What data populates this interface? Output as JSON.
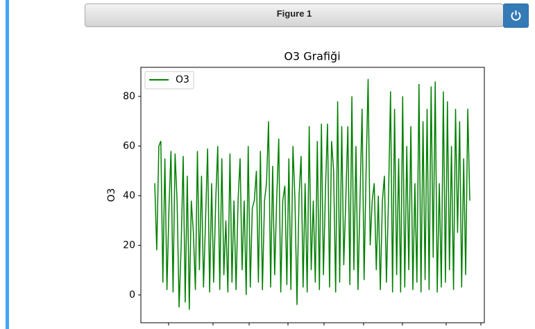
{
  "window": {
    "title": "Figure 1"
  },
  "chart_data": {
    "type": "line",
    "title": "O3 Grafiği",
    "ylabel": "O3",
    "series": [
      {
        "name": "O3",
        "color": "#008000",
        "values": [
          45,
          18,
          60,
          62,
          5,
          55,
          2,
          35,
          58,
          1,
          57,
          38,
          -5,
          20,
          56,
          -3,
          48,
          -6,
          38,
          25,
          2,
          58,
          10,
          48,
          3,
          30,
          59,
          1,
          45,
          5,
          38,
          60,
          2,
          55,
          8,
          30,
          1,
          57,
          5,
          38,
          2,
          38,
          55,
          10,
          38,
          0,
          60,
          3,
          35,
          38,
          50,
          5,
          58,
          2,
          38,
          45,
          70,
          3,
          52,
          8,
          38,
          63,
          1,
          38,
          44,
          4,
          55,
          2,
          60,
          38,
          -4,
          40,
          56,
          3,
          45,
          1,
          68,
          10,
          38,
          5,
          62,
          2,
          69,
          8,
          42,
          69,
          3,
          62,
          50,
          1,
          78,
          5,
          68,
          12,
          38,
          68,
          4,
          80,
          10,
          60,
          2,
          38,
          75,
          6,
          50,
          87,
          20,
          38,
          45,
          10,
          40,
          2,
          38,
          48,
          5,
          38,
          82,
          1,
          75,
          8,
          55,
          1,
          80,
          3,
          60,
          10,
          68,
          2,
          45,
          5,
          85,
          1,
          70,
          6,
          75,
          2,
          84,
          15,
          86,
          1,
          45,
          3,
          82,
          5,
          78,
          10,
          60,
          2,
          75,
          25,
          70,
          3,
          55,
          8,
          75,
          38
        ]
      }
    ],
    "ylim": [
      -11.2,
      91.7
    ],
    "yticks": [
      0,
      20,
      40,
      60,
      80
    ],
    "legend": "upper left"
  }
}
